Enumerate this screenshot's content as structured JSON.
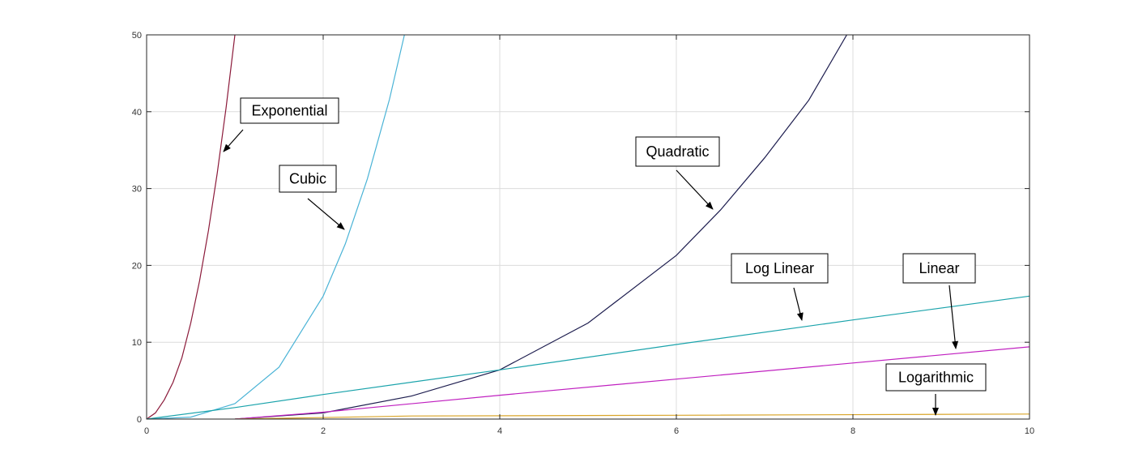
{
  "chart_data": {
    "type": "line",
    "xlim": [
      0,
      10
    ],
    "ylim": [
      0,
      50
    ],
    "xticks": [
      0,
      2,
      4,
      6,
      8,
      10
    ],
    "yticks": [
      0,
      10,
      20,
      30,
      40,
      50
    ],
    "grid": true,
    "series": [
      {
        "name": "Exponential",
        "color": "#8b1a3a",
        "x": [
          0,
          0.1,
          0.2,
          0.3,
          0.4,
          0.5,
          0.6,
          0.7,
          0.8,
          0.9,
          1.0
        ],
        "values": [
          0,
          0.8,
          2.5,
          4.8,
          8,
          12.5,
          18,
          24.5,
          32,
          40.5,
          50
        ]
      },
      {
        "name": "Cubic",
        "color": "#4ab3d6",
        "x": [
          0,
          0.5,
          1,
          1.5,
          2,
          2.25,
          2.5,
          2.75,
          2.92
        ],
        "values": [
          0,
          0.25,
          2,
          6.75,
          16,
          22.8,
          31.25,
          41.6,
          50
        ]
      },
      {
        "name": "Quadratic",
        "color": "#1c1c4e",
        "x": [
          1,
          2,
          3,
          4,
          5,
          6,
          6.5,
          7,
          7.5,
          7.93
        ],
        "values": [
          0,
          0.8,
          3,
          6.4,
          12.5,
          21.3,
          27.2,
          34,
          41.5,
          50
        ]
      },
      {
        "name": "Log Linear",
        "color": "#1aa3ab",
        "x": [
          0,
          1,
          2,
          4,
          6,
          8,
          10
        ],
        "values": [
          0,
          1.5,
          3.2,
          6.4,
          9.7,
          12.9,
          16
        ]
      },
      {
        "name": "Linear",
        "color": "#c020c0",
        "x": [
          1,
          2,
          4,
          6,
          8,
          10
        ],
        "values": [
          0,
          0.9,
          3.1,
          5.2,
          7.3,
          9.4
        ]
      },
      {
        "name": "Logarithmic",
        "color": "#d9a52a",
        "x": [
          1,
          3,
          6,
          10
        ],
        "values": [
          0,
          0.4,
          0.5,
          0.65
        ]
      }
    ]
  }
}
